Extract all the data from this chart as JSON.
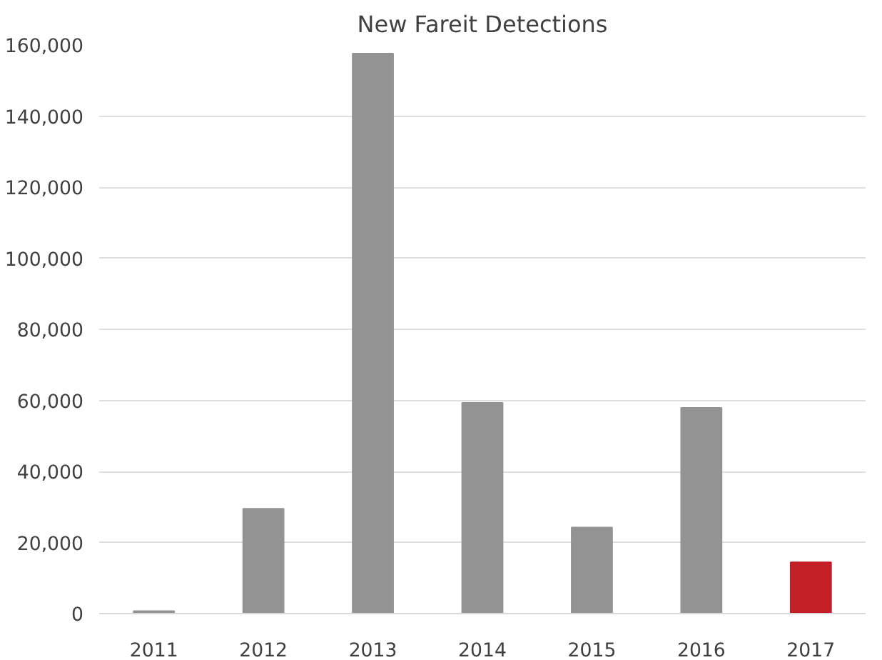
{
  "chart_data": {
    "type": "bar",
    "title": "New Fareit Detections",
    "categories": [
      "2011",
      "2012",
      "2013",
      "2014",
      "2015",
      "2016",
      "2017"
    ],
    "values": [
      700,
      29500,
      157600,
      59300,
      24200,
      57900,
      14400
    ],
    "colors": [
      "#939393",
      "#939393",
      "#939393",
      "#939393",
      "#939393",
      "#939393",
      "#c41e26"
    ],
    "ylim": [
      0,
      160000
    ],
    "yticks": [
      {
        "value": 0,
        "label": "0"
      },
      {
        "value": 20000,
        "label": "20,000"
      },
      {
        "value": 40000,
        "label": "40,000"
      },
      {
        "value": 60000,
        "label": "60,000"
      },
      {
        "value": 80000,
        "label": "80,000"
      },
      {
        "value": 100000,
        "label": "100,000"
      },
      {
        "value": 120000,
        "label": "120,000"
      },
      {
        "value": 140000,
        "label": "140,000"
      },
      {
        "value": 160000,
        "label": "160,000"
      }
    ],
    "grid": "y"
  }
}
